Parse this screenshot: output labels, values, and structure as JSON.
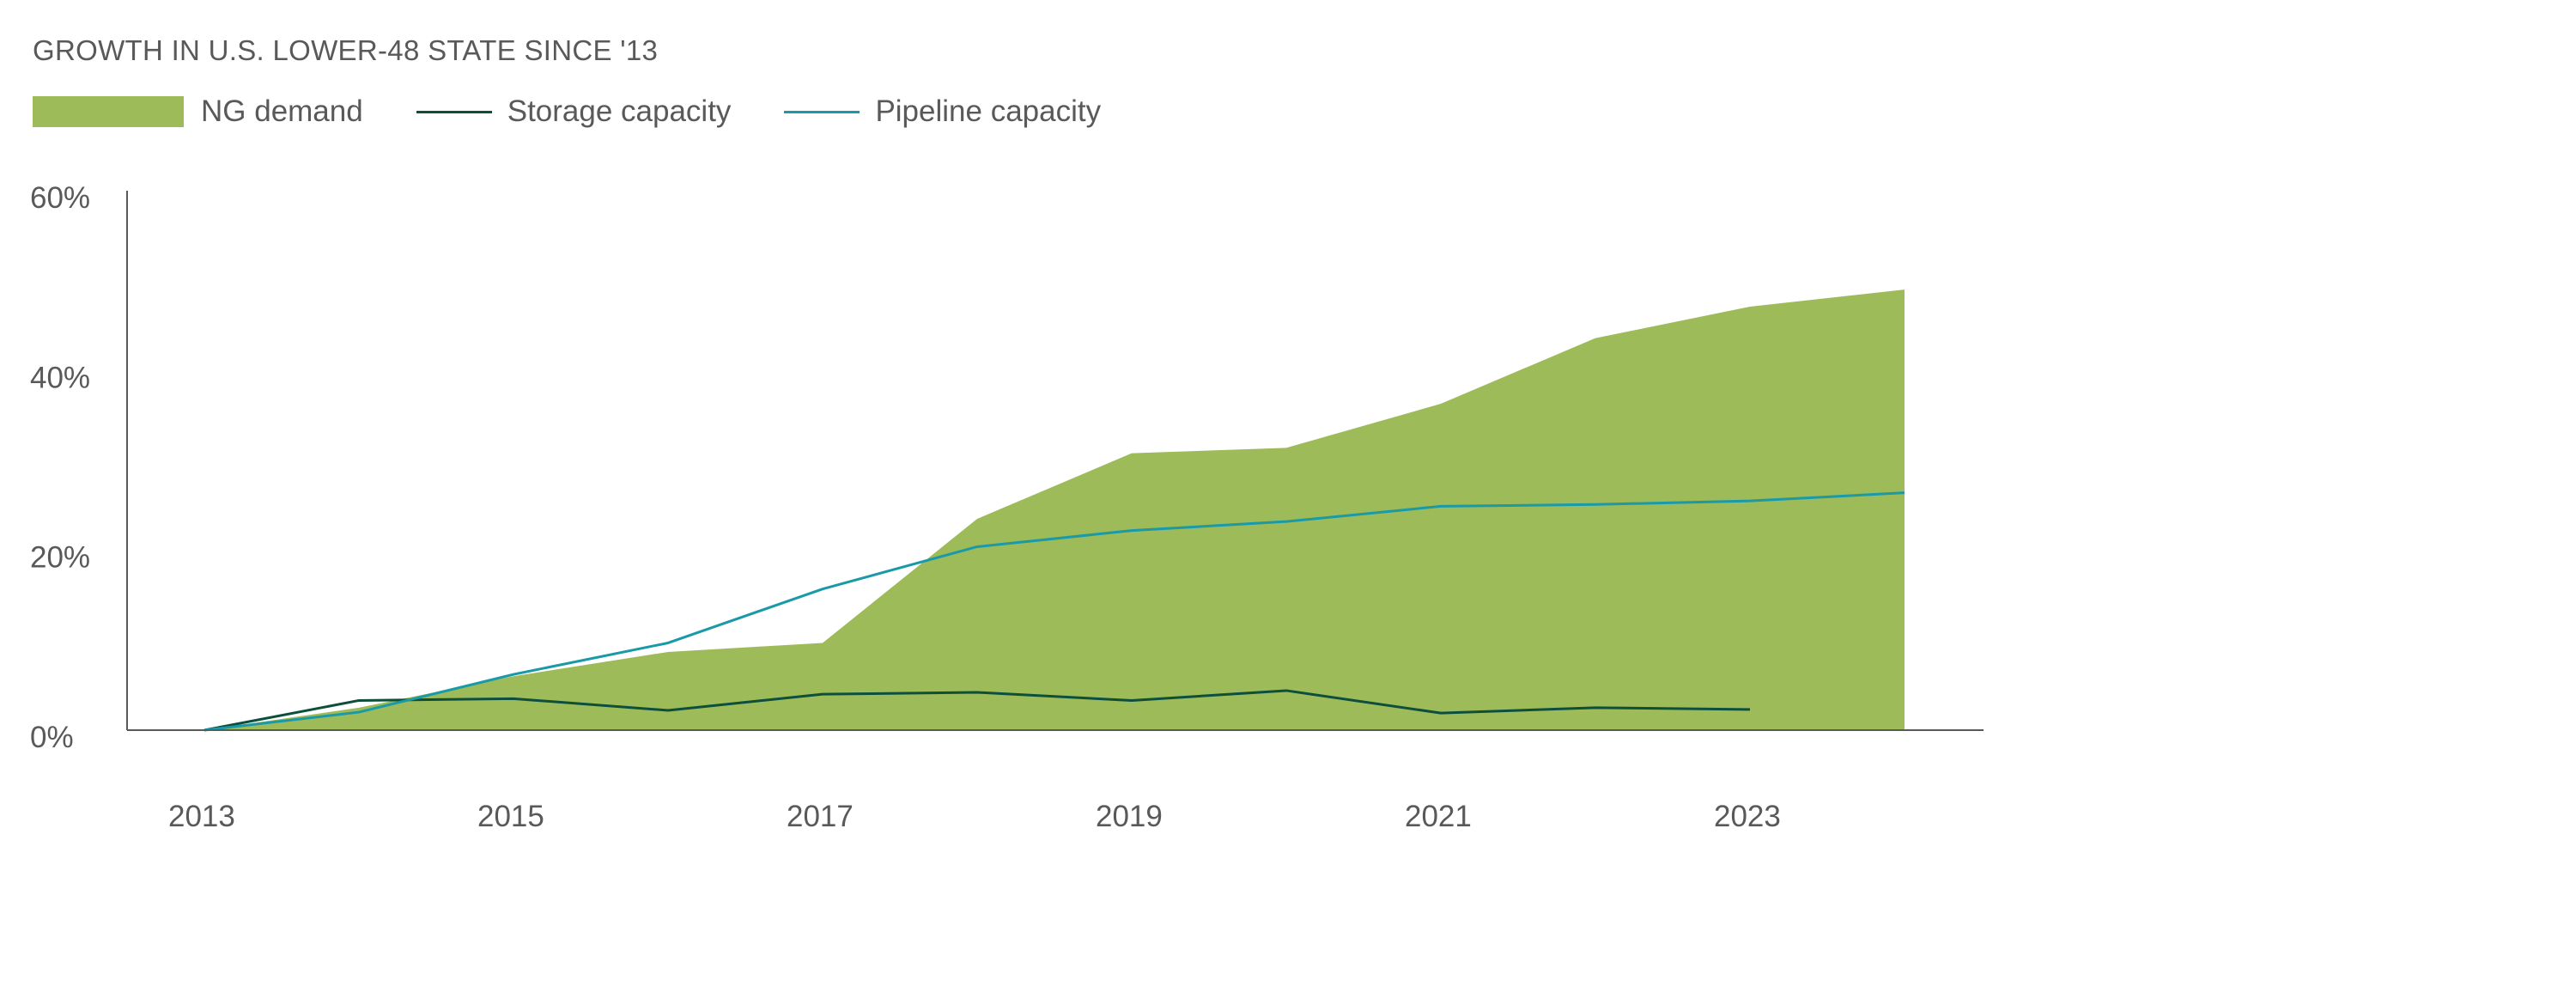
{
  "colors": {
    "ng_demand": "#9dbb58",
    "storage_capacity": "#0d4f3c",
    "pipeline_capacity": "#1a9aa8",
    "axis": "#595959",
    "text": "#595959"
  },
  "chart_data": {
    "type": "area",
    "title": "GROWTH IN U.S. LOWER-48 STATE SINCE '13",
    "xlabel": "",
    "ylabel": "",
    "x": [
      2013,
      2014,
      2015,
      2016,
      2017,
      2018,
      2019,
      2020,
      2021,
      2022,
      2023,
      2024
    ],
    "x_tick_labels": [
      "2013",
      "2015",
      "2017",
      "2019",
      "2021",
      "2023"
    ],
    "x_tick_values": [
      2013,
      2015,
      2017,
      2019,
      2021,
      2023
    ],
    "y_tick_labels": [
      "0%",
      "20%",
      "40%",
      "60%"
    ],
    "y_tick_values": [
      0,
      20,
      40,
      60
    ],
    "ylim": [
      0,
      60
    ],
    "legend_position": "top-left",
    "series": [
      {
        "name": "NG demand",
        "type": "area",
        "x": [
          2013,
          2014,
          2015,
          2016,
          2017,
          2018,
          2019,
          2020,
          2021,
          2022,
          2023,
          2024
        ],
        "values": [
          0,
          2.5,
          6,
          8.7,
          9.7,
          23.5,
          30.8,
          31.4,
          36.3,
          43.6,
          47.1,
          49.0
        ]
      },
      {
        "name": "Storage capacity",
        "type": "line",
        "x": [
          2013,
          2014,
          2015,
          2016,
          2017,
          2018,
          2019,
          2020,
          2021,
          2022,
          2023
        ],
        "values": [
          0,
          3.3,
          3.5,
          2.2,
          4.0,
          4.2,
          3.3,
          4.4,
          1.9,
          2.5,
          2.3
        ]
      },
      {
        "name": "Pipeline capacity",
        "type": "line",
        "x": [
          2013,
          2014,
          2015,
          2016,
          2017,
          2018,
          2019,
          2020,
          2021,
          2022,
          2023,
          2024
        ],
        "values": [
          0,
          2.0,
          6.2,
          9.7,
          15.7,
          20.4,
          22.2,
          23.2,
          24.9,
          25.1,
          25.5,
          26.4
        ]
      }
    ]
  }
}
